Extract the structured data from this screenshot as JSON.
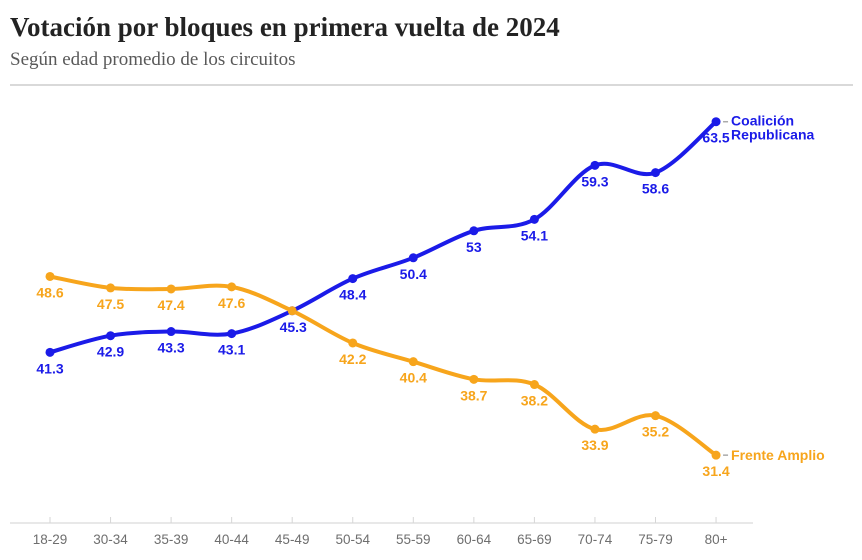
{
  "header": {
    "title": "Votación por bloques en primera vuelta de 2024",
    "subtitle": "Según edad promedio de los circuitos"
  },
  "chart_data": {
    "type": "line",
    "title": "Votación por bloques en primera vuelta de 2024",
    "subtitle": "Según edad promedio de los circuitos",
    "xlabel": "",
    "ylabel": "",
    "categories": [
      "18-29",
      "30-34",
      "35-39",
      "40-44",
      "45-49",
      "50-54",
      "55-59",
      "60-64",
      "65-69",
      "70-74",
      "75-79",
      "80+"
    ],
    "series": [
      {
        "name": "Coalición Republicana",
        "label_lines": [
          "Coalición",
          "Republicana"
        ],
        "color": "#1b1be8",
        "values": [
          41.3,
          42.9,
          43.3,
          43.1,
          45.3,
          48.4,
          50.4,
          53,
          54.1,
          59.3,
          58.6,
          63.5
        ],
        "point_labels": [
          "41.3",
          "42.9",
          "43.3",
          "43.1",
          "45.3",
          "48.4",
          "50.4",
          "53",
          "54.1",
          "59.3",
          "58.6",
          "63.5"
        ]
      },
      {
        "name": "Frente Amplio",
        "label_lines": [
          "Frente Amplio"
        ],
        "color": "#f7a51c",
        "values": [
          48.6,
          47.5,
          47.4,
          47.6,
          45.3,
          42.2,
          40.4,
          38.7,
          38.2,
          33.9,
          35.2,
          31.4
        ],
        "point_labels": [
          "48.6",
          "47.5",
          "47.4",
          "47.6",
          "",
          "42.2",
          "40.4",
          "38.7",
          "38.2",
          "33.9",
          "35.2",
          "31.4"
        ]
      }
    ],
    "ylim": [
      28,
      66
    ],
    "grid": false,
    "legend_position": "end-of-line",
    "notes": "Value labels printed under each point; series name at right end of each line; at 45-49 the two lines cross and only the blue 45.3 label is shown."
  },
  "colors": {
    "blue": "#1b1be8",
    "orange": "#f7a51c",
    "axis_line": "#e0e0e0",
    "axis_tick": "#d6d6d6",
    "axis_label": "#6e6e6e",
    "connector": "#aaaaaa",
    "title": "#232323",
    "subtitle": "#595959",
    "divider": "#d9d9d9"
  }
}
